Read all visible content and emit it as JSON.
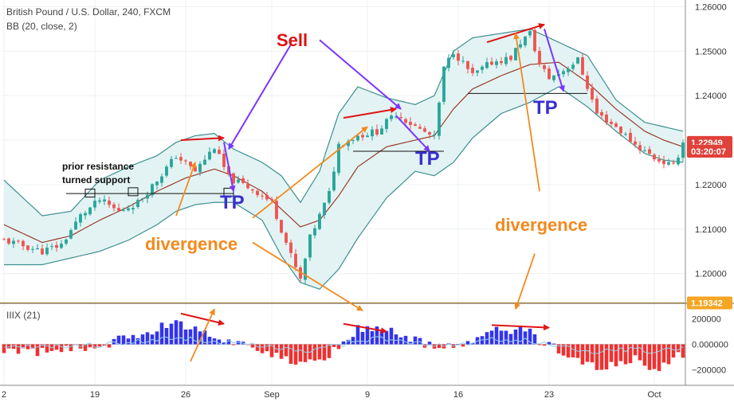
{
  "chart_data": {
    "type": "candlestick",
    "title": "British Pound / U.S. Dollar, 240, FXCM",
    "indicator_label": "BB (20, close, 2)",
    "sub_indicator_label": "IIIX (21)",
    "price_ylim": [
      1.1935,
      1.2615
    ],
    "price_ticks": [
      "1.26000",
      "1.25000",
      "1.24000",
      "1.23000",
      "1.22000",
      "1.21000",
      "1.20000"
    ],
    "sub_ylim": [
      -320000,
      320000
    ],
    "sub_ticks": [
      "200000",
      "0.000000",
      "−200000"
    ],
    "x_ticks": [
      {
        "label": "2",
        "bar": 0
      },
      {
        "label": "19",
        "bar": 19
      },
      {
        "label": "26",
        "bar": 38
      },
      {
        "label": "Sep",
        "bar": 56
      },
      {
        "label": "9",
        "bar": 76
      },
      {
        "label": "16",
        "bar": 95
      },
      {
        "label": "23",
        "bar": 114
      },
      {
        "label": "Oct",
        "bar": 136
      }
    ],
    "bar_count": 143,
    "close_path": [
      [
        0,
        1.2075
      ],
      [
        8,
        1.205
      ],
      [
        12,
        1.2065
      ],
      [
        16,
        1.213
      ],
      [
        20,
        1.2165
      ],
      [
        24,
        1.214
      ],
      [
        28,
        1.216
      ],
      [
        32,
        1.221
      ],
      [
        36,
        1.2265
      ],
      [
        40,
        1.223
      ],
      [
        44,
        1.2285
      ],
      [
        47,
        1.2215
      ],
      [
        52,
        1.219
      ],
      [
        56,
        1.216
      ],
      [
        60,
        1.204
      ],
      [
        62,
        1.1985
      ],
      [
        64,
        1.208
      ],
      [
        68,
        1.218
      ],
      [
        70,
        1.229
      ],
      [
        74,
        1.231
      ],
      [
        78,
        1.232
      ],
      [
        82,
        1.236
      ],
      [
        86,
        1.233
      ],
      [
        90,
        1.2305
      ],
      [
        92,
        1.246
      ],
      [
        94,
        1.25
      ],
      [
        98,
        1.2445
      ],
      [
        102,
        1.2475
      ],
      [
        106,
        1.2485
      ],
      [
        108,
        1.252
      ],
      [
        110,
        1.254
      ],
      [
        112,
        1.247
      ],
      [
        114,
        1.244
      ],
      [
        116,
        1.245
      ],
      [
        120,
        1.248
      ],
      [
        124,
        1.236
      ],
      [
        128,
        1.233
      ],
      [
        132,
        1.229
      ],
      [
        136,
        1.226
      ],
      [
        138,
        1.225
      ],
      [
        140,
        1.224
      ],
      [
        142,
        1.2295
      ]
    ],
    "bb_upper_path": [
      [
        0,
        1.221
      ],
      [
        8,
        1.213
      ],
      [
        14,
        1.214
      ],
      [
        20,
        1.221
      ],
      [
        26,
        1.224
      ],
      [
        32,
        1.2265
      ],
      [
        36,
        1.2295
      ],
      [
        40,
        1.231
      ],
      [
        44,
        1.2315
      ],
      [
        48,
        1.228
      ],
      [
        54,
        1.225
      ],
      [
        58,
        1.222
      ],
      [
        62,
        1.216
      ],
      [
        66,
        1.223
      ],
      [
        70,
        1.236
      ],
      [
        74,
        1.242
      ],
      [
        80,
        1.2395
      ],
      [
        86,
        1.238
      ],
      [
        90,
        1.24
      ],
      [
        94,
        1.25
      ],
      [
        98,
        1.253
      ],
      [
        104,
        1.254
      ],
      [
        110,
        1.255
      ],
      [
        116,
        1.252
      ],
      [
        122,
        1.249
      ],
      [
        128,
        1.239
      ],
      [
        134,
        1.234
      ],
      [
        138,
        1.233
      ],
      [
        142,
        1.232
      ]
    ],
    "bb_middle_path": [
      [
        0,
        1.211
      ],
      [
        8,
        1.207
      ],
      [
        14,
        1.2085
      ],
      [
        20,
        1.212
      ],
      [
        26,
        1.215
      ],
      [
        32,
        1.2185
      ],
      [
        38,
        1.2215
      ],
      [
        44,
        1.2235
      ],
      [
        48,
        1.222
      ],
      [
        54,
        1.2185
      ],
      [
        58,
        1.2145
      ],
      [
        62,
        1.2105
      ],
      [
        66,
        1.212
      ],
      [
        70,
        1.2175
      ],
      [
        74,
        1.224
      ],
      [
        80,
        1.2285
      ],
      [
        86,
        1.23
      ],
      [
        90,
        1.231
      ],
      [
        94,
        1.237
      ],
      [
        98,
        1.2415
      ],
      [
        104,
        1.2445
      ],
      [
        110,
        1.247
      ],
      [
        116,
        1.2475
      ],
      [
        122,
        1.243
      ],
      [
        128,
        1.237
      ],
      [
        134,
        1.232
      ],
      [
        138,
        1.23
      ],
      [
        142,
        1.2285
      ]
    ],
    "bb_lower_path": [
      [
        0,
        1.202
      ],
      [
        8,
        1.202
      ],
      [
        14,
        1.2035
      ],
      [
        20,
        1.205
      ],
      [
        26,
        1.2075
      ],
      [
        32,
        1.211
      ],
      [
        36,
        1.214
      ],
      [
        40,
        1.2155
      ],
      [
        44,
        1.216
      ],
      [
        48,
        1.216
      ],
      [
        54,
        1.212
      ],
      [
        58,
        1.204
      ],
      [
        62,
        1.198
      ],
      [
        66,
        1.1965
      ],
      [
        70,
        1.201
      ],
      [
        74,
        1.208
      ],
      [
        80,
        1.217
      ],
      [
        86,
        1.223
      ],
      [
        90,
        1.222
      ],
      [
        94,
        1.225
      ],
      [
        98,
        1.2305
      ],
      [
        104,
        1.236
      ],
      [
        110,
        1.2385
      ],
      [
        116,
        1.242
      ],
      [
        122,
        1.2375
      ],
      [
        128,
        1.232
      ],
      [
        134,
        1.227
      ],
      [
        138,
        1.2255
      ],
      [
        142,
        1.225
      ]
    ],
    "sub_path": [
      [
        0,
        -50000
      ],
      [
        10,
        -60000
      ],
      [
        16,
        -30000
      ],
      [
        20,
        -20000
      ],
      [
        26,
        60000
      ],
      [
        32,
        120000
      ],
      [
        36,
        190000
      ],
      [
        40,
        110000
      ],
      [
        44,
        60000
      ],
      [
        48,
        20000
      ],
      [
        54,
        -40000
      ],
      [
        58,
        -110000
      ],
      [
        62,
        -170000
      ],
      [
        66,
        -120000
      ],
      [
        70,
        -30000
      ],
      [
        74,
        120000
      ],
      [
        78,
        140000
      ],
      [
        82,
        90000
      ],
      [
        86,
        30000
      ],
      [
        90,
        -20000
      ],
      [
        94,
        -30000
      ],
      [
        98,
        20000
      ],
      [
        102,
        120000
      ],
      [
        106,
        90000
      ],
      [
        110,
        120000
      ],
      [
        112,
        30000
      ],
      [
        116,
        -40000
      ],
      [
        120,
        -120000
      ],
      [
        124,
        -190000
      ],
      [
        128,
        -160000
      ],
      [
        132,
        -120000
      ],
      [
        136,
        -200000
      ],
      [
        138,
        -160000
      ],
      [
        142,
        -70000
      ]
    ],
    "support_lines": [
      {
        "from_bar": 13,
        "to_bar": 48,
        "value": 1.218
      },
      {
        "from_bar": 73,
        "to_bar": 92,
        "value": 1.2275
      },
      {
        "from_bar": 97,
        "to_bar": 122,
        "value": 1.2405
      }
    ],
    "horizontal_level": 1.19342,
    "price_tags": [
      {
        "text": "1.22949",
        "value": 1.22949,
        "color": "#e0413a"
      },
      {
        "text": "03:20:07",
        "value": 1.22749,
        "color": "#e0413a"
      },
      {
        "text": "1.19342",
        "value": 1.19342,
        "color": "#f5a623"
      }
    ],
    "annotations": {
      "sell": "Sell",
      "tp": "TP",
      "divergence": "divergence",
      "prior_resistance_line1": "prior resistance",
      "prior_resistance_line2": "turned support"
    },
    "colors": {
      "bull": "#26a69a",
      "bear": "#ef5350",
      "bb_fill": "#e3f3f3",
      "bb_band": "#3f8f8f",
      "bb_middle": "#9a3a2a",
      "sub_pos": "#3333ee",
      "sub_neg": "#f03030",
      "sub_line": "#8fcfee",
      "arrow_red": "#e01515",
      "arrow_purple": "#7a35ff",
      "arrow_orange": "#f28a1d",
      "level": "#f5a623",
      "axis_text": "#333333"
    }
  }
}
